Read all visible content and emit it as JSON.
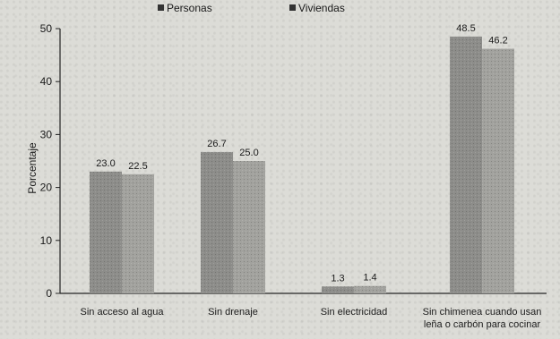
{
  "chart_data": {
    "type": "bar",
    "categories": [
      [
        "Sin acceso al agua"
      ],
      [
        "Sin drenaje"
      ],
      [
        "Sin electricidad"
      ],
      [
        "Sin chimenea cuando usan",
        "leña o carbón para cocinar"
      ]
    ],
    "series": [
      {
        "name": "Personas",
        "values": [
          23.0,
          26.7,
          1.3,
          48.5
        ],
        "labels": [
          "23.0",
          "26.7",
          "1.3",
          "48.5"
        ]
      },
      {
        "name": "Viviendas",
        "values": [
          22.5,
          25.0,
          1.4,
          46.2
        ],
        "labels": [
          "22.5",
          "25.0",
          "1.4",
          "46.2"
        ]
      }
    ],
    "ylabel": "Porcentaje",
    "ylim": [
      0,
      50
    ],
    "yticks": [
      0,
      10,
      20,
      30,
      40,
      50
    ],
    "grid": false,
    "legend": "top",
    "colors": {
      "Personas": "#8d8d8a",
      "Viviendas": "#a2a29e"
    }
  }
}
